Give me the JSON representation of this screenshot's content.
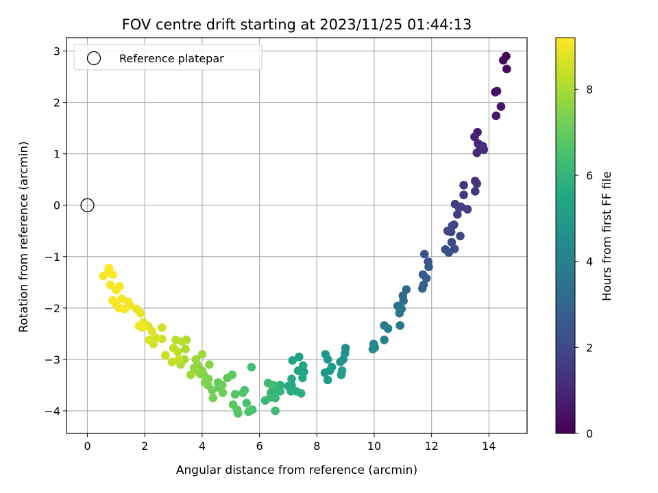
{
  "chart_data": {
    "type": "scatter",
    "title": "FOV centre drift starting at 2023/11/25 01:44:13",
    "xlabel": "Angular distance from reference (arcmin)",
    "ylabel": "Rotation from reference (arcmin)",
    "xlim": [
      -0.73,
      15.33
    ],
    "ylim": [
      -4.44,
      3.26
    ],
    "xticks": [
      0,
      2,
      4,
      6,
      8,
      10,
      12,
      14
    ],
    "yticks": [
      -4,
      -3,
      -2,
      -1,
      0,
      1,
      2,
      3
    ],
    "grid": true,
    "legend": {
      "position": "upper-left",
      "entries": [
        "Reference platepar"
      ]
    },
    "reference_point": {
      "x": 0,
      "y": 0,
      "marker": "open-circle"
    },
    "colorbar": {
      "label": "Hours from first FF file",
      "colormap": "viridis",
      "range": [
        0,
        9.2
      ],
      "ticks": [
        0,
        2,
        4,
        6,
        8
      ]
    },
    "points": [
      [
        14.6,
        2.9,
        0.05
      ],
      [
        14.5,
        2.82,
        0.15
      ],
      [
        14.62,
        2.65,
        0.25
      ],
      [
        14.28,
        2.22,
        0.35
      ],
      [
        14.22,
        2.2,
        0.45
      ],
      [
        14.42,
        1.92,
        0.55
      ],
      [
        14.25,
        1.74,
        0.65
      ],
      [
        13.6,
        1.42,
        0.75
      ],
      [
        13.5,
        1.33,
        0.85
      ],
      [
        13.62,
        1.2,
        0.95
      ],
      [
        13.78,
        1.15,
        1.05
      ],
      [
        13.58,
        1.02,
        1.1
      ],
      [
        13.82,
        1.08,
        1.15
      ],
      [
        13.7,
        1.12,
        1.2
      ],
      [
        13.52,
        0.47,
        1.3
      ],
      [
        13.58,
        0.42,
        1.35
      ],
      [
        13.12,
        0.39,
        1.4
      ],
      [
        13.52,
        0.27,
        1.45
      ],
      [
        13.12,
        0.2,
        1.5
      ],
      [
        12.82,
        0.02,
        1.55
      ],
      [
        13.02,
        -0.03,
        1.6
      ],
      [
        12.9,
        -0.18,
        1.65
      ],
      [
        13.25,
        -0.08,
        1.7
      ],
      [
        12.96,
        -0.05,
        1.75
      ],
      [
        12.72,
        -0.4,
        1.8
      ],
      [
        12.56,
        -0.5,
        1.85
      ],
      [
        12.68,
        -0.52,
        1.9
      ],
      [
        12.78,
        -0.38,
        1.95
      ],
      [
        13.0,
        -0.6,
        2.0
      ],
      [
        12.7,
        -0.72,
        2.05
      ],
      [
        12.8,
        -0.85,
        2.1
      ],
      [
        12.48,
        -0.86,
        2.15
      ],
      [
        12.6,
        -0.92,
        2.2
      ],
      [
        11.75,
        -0.95,
        2.35
      ],
      [
        11.88,
        -1.1,
        2.45
      ],
      [
        11.9,
        -1.2,
        2.55
      ],
      [
        11.7,
        -1.35,
        2.65
      ],
      [
        11.82,
        -1.42,
        2.75
      ],
      [
        11.72,
        -1.55,
        2.85
      ],
      [
        11.68,
        -1.62,
        2.95
      ],
      [
        11.12,
        -1.64,
        3.1
      ],
      [
        11.0,
        -1.76,
        3.2
      ],
      [
        11.02,
        -1.86,
        3.3
      ],
      [
        10.82,
        -1.96,
        3.4
      ],
      [
        10.95,
        -2.02,
        3.5
      ],
      [
        10.88,
        -2.1,
        3.55
      ],
      [
        10.9,
        -2.34,
        3.65
      ],
      [
        10.35,
        -2.34,
        3.8
      ],
      [
        10.48,
        -2.4,
        3.9
      ],
      [
        10.35,
        -2.62,
        4.0
      ],
      [
        9.98,
        -2.7,
        4.15
      ],
      [
        9.95,
        -2.8,
        4.25
      ],
      [
        10.02,
        -2.77,
        4.35
      ],
      [
        9.0,
        -2.78,
        4.5
      ],
      [
        8.98,
        -2.88,
        4.6
      ],
      [
        8.92,
        -3.0,
        4.7
      ],
      [
        8.82,
        -3.05,
        4.75
      ],
      [
        8.3,
        -2.9,
        4.8
      ],
      [
        8.38,
        -3.0,
        4.85
      ],
      [
        8.52,
        -3.15,
        4.9
      ],
      [
        8.45,
        -3.22,
        4.95
      ],
      [
        8.28,
        -3.26,
        5.0
      ],
      [
        8.38,
        -3.4,
        5.05
      ],
      [
        8.88,
        -3.22,
        5.1
      ],
      [
        8.85,
        -3.3,
        5.15
      ],
      [
        7.38,
        -2.95,
        5.25
      ],
      [
        7.15,
        -3.02,
        5.3
      ],
      [
        7.52,
        -3.12,
        5.35
      ],
      [
        7.35,
        -3.22,
        5.4
      ],
      [
        7.55,
        -3.24,
        5.45
      ],
      [
        7.5,
        -3.36,
        5.5
      ],
      [
        7.12,
        -3.38,
        5.55
      ],
      [
        7.12,
        -3.5,
        5.6
      ],
      [
        7.0,
        -3.52,
        5.65
      ],
      [
        7.1,
        -3.62,
        5.7
      ],
      [
        7.28,
        -3.62,
        5.75
      ],
      [
        7.45,
        -3.66,
        5.8
      ],
      [
        6.72,
        -3.5,
        5.85
      ],
      [
        6.6,
        -3.58,
        5.9
      ],
      [
        6.45,
        -3.6,
        5.95
      ],
      [
        6.72,
        -3.62,
        6.0
      ],
      [
        6.4,
        -3.65,
        6.05
      ],
      [
        6.55,
        -3.75,
        6.1
      ],
      [
        6.38,
        -3.74,
        6.15
      ],
      [
        6.2,
        -3.8,
        6.2
      ],
      [
        6.3,
        -3.46,
        6.25
      ],
      [
        6.48,
        -3.5,
        6.3
      ],
      [
        6.55,
        -4.0,
        6.35
      ],
      [
        5.72,
        -3.15,
        6.4
      ],
      [
        5.75,
        -3.98,
        6.45
      ],
      [
        5.55,
        -3.85,
        6.5
      ],
      [
        5.48,
        -3.6,
        6.55
      ],
      [
        5.62,
        -4.02,
        6.6
      ],
      [
        5.25,
        -4.05,
        6.65
      ],
      [
        5.42,
        -3.65,
        6.7
      ],
      [
        5.15,
        -3.68,
        6.75
      ],
      [
        5.22,
        -3.98,
        6.8
      ],
      [
        5.08,
        -3.88,
        6.85
      ],
      [
        5.05,
        -3.3,
        6.9
      ],
      [
        4.88,
        -3.36,
        6.95
      ],
      [
        4.55,
        -3.45,
        7.0
      ],
      [
        4.58,
        -3.55,
        7.05
      ],
      [
        4.7,
        -3.5,
        7.1
      ],
      [
        4.72,
        -3.65,
        7.15
      ],
      [
        4.35,
        -3.6,
        7.2
      ],
      [
        4.2,
        -3.5,
        7.25
      ],
      [
        4.38,
        -3.75,
        7.3
      ],
      [
        4.22,
        -3.38,
        7.35
      ],
      [
        4.05,
        -3.3,
        7.4
      ],
      [
        4.1,
        -3.45,
        7.45
      ],
      [
        4.25,
        -3.1,
        7.5
      ],
      [
        4.0,
        -3.22,
        7.55
      ],
      [
        3.92,
        -3.28,
        7.6
      ],
      [
        3.85,
        -3.12,
        7.65
      ],
      [
        3.8,
        -3.22,
        7.7
      ],
      [
        3.72,
        -3.16,
        7.75
      ],
      [
        3.78,
        -3.0,
        7.8
      ],
      [
        4.0,
        -2.9,
        7.85
      ],
      [
        3.6,
        -3.3,
        7.9
      ],
      [
        3.38,
        -3.0,
        7.95
      ],
      [
        3.25,
        -3.1,
        8.0
      ],
      [
        3.42,
        -2.8,
        8.05
      ],
      [
        3.45,
        -2.62,
        8.1
      ],
      [
        3.3,
        -2.65,
        8.15
      ],
      [
        3.08,
        -2.62,
        8.2
      ],
      [
        3.15,
        -2.85,
        8.25
      ],
      [
        3.0,
        -2.78,
        8.3
      ],
      [
        2.95,
        -3.05,
        8.35
      ],
      [
        3.18,
        -3.0,
        8.4
      ],
      [
        2.72,
        -2.92,
        8.45
      ],
      [
        2.6,
        -2.6,
        8.5
      ],
      [
        2.6,
        -2.38,
        8.55
      ],
      [
        2.3,
        -2.7,
        8.6
      ],
      [
        2.38,
        -2.58,
        8.65
      ],
      [
        2.15,
        -2.62,
        8.7
      ],
      [
        2.25,
        -2.45,
        8.75
      ],
      [
        2.12,
        -2.35,
        8.8
      ],
      [
        1.95,
        -2.28,
        8.85
      ],
      [
        1.85,
        -2.1,
        8.9
      ],
      [
        1.72,
        -2.02,
        8.95
      ],
      [
        1.92,
        -2.38,
        8.98
      ],
      [
        1.8,
        -2.35,
        9.0
      ],
      [
        1.48,
        -1.95,
        9.02
      ],
      [
        1.3,
        -2.02,
        9.04
      ],
      [
        1.42,
        -1.88,
        9.06
      ],
      [
        1.1,
        -2.0,
        9.08
      ],
      [
        1.2,
        -1.82,
        9.1
      ],
      [
        0.88,
        -1.85,
        9.11
      ],
      [
        1.0,
        -1.65,
        9.12
      ],
      [
        1.12,
        -1.58,
        9.13
      ],
      [
        0.8,
        -1.55,
        9.14
      ],
      [
        0.98,
        -1.92,
        9.15
      ],
      [
        0.55,
        -1.38,
        9.16
      ],
      [
        0.72,
        -1.3,
        9.17
      ],
      [
        0.88,
        -1.35,
        9.18
      ],
      [
        0.75,
        -1.22,
        9.19
      ]
    ]
  }
}
